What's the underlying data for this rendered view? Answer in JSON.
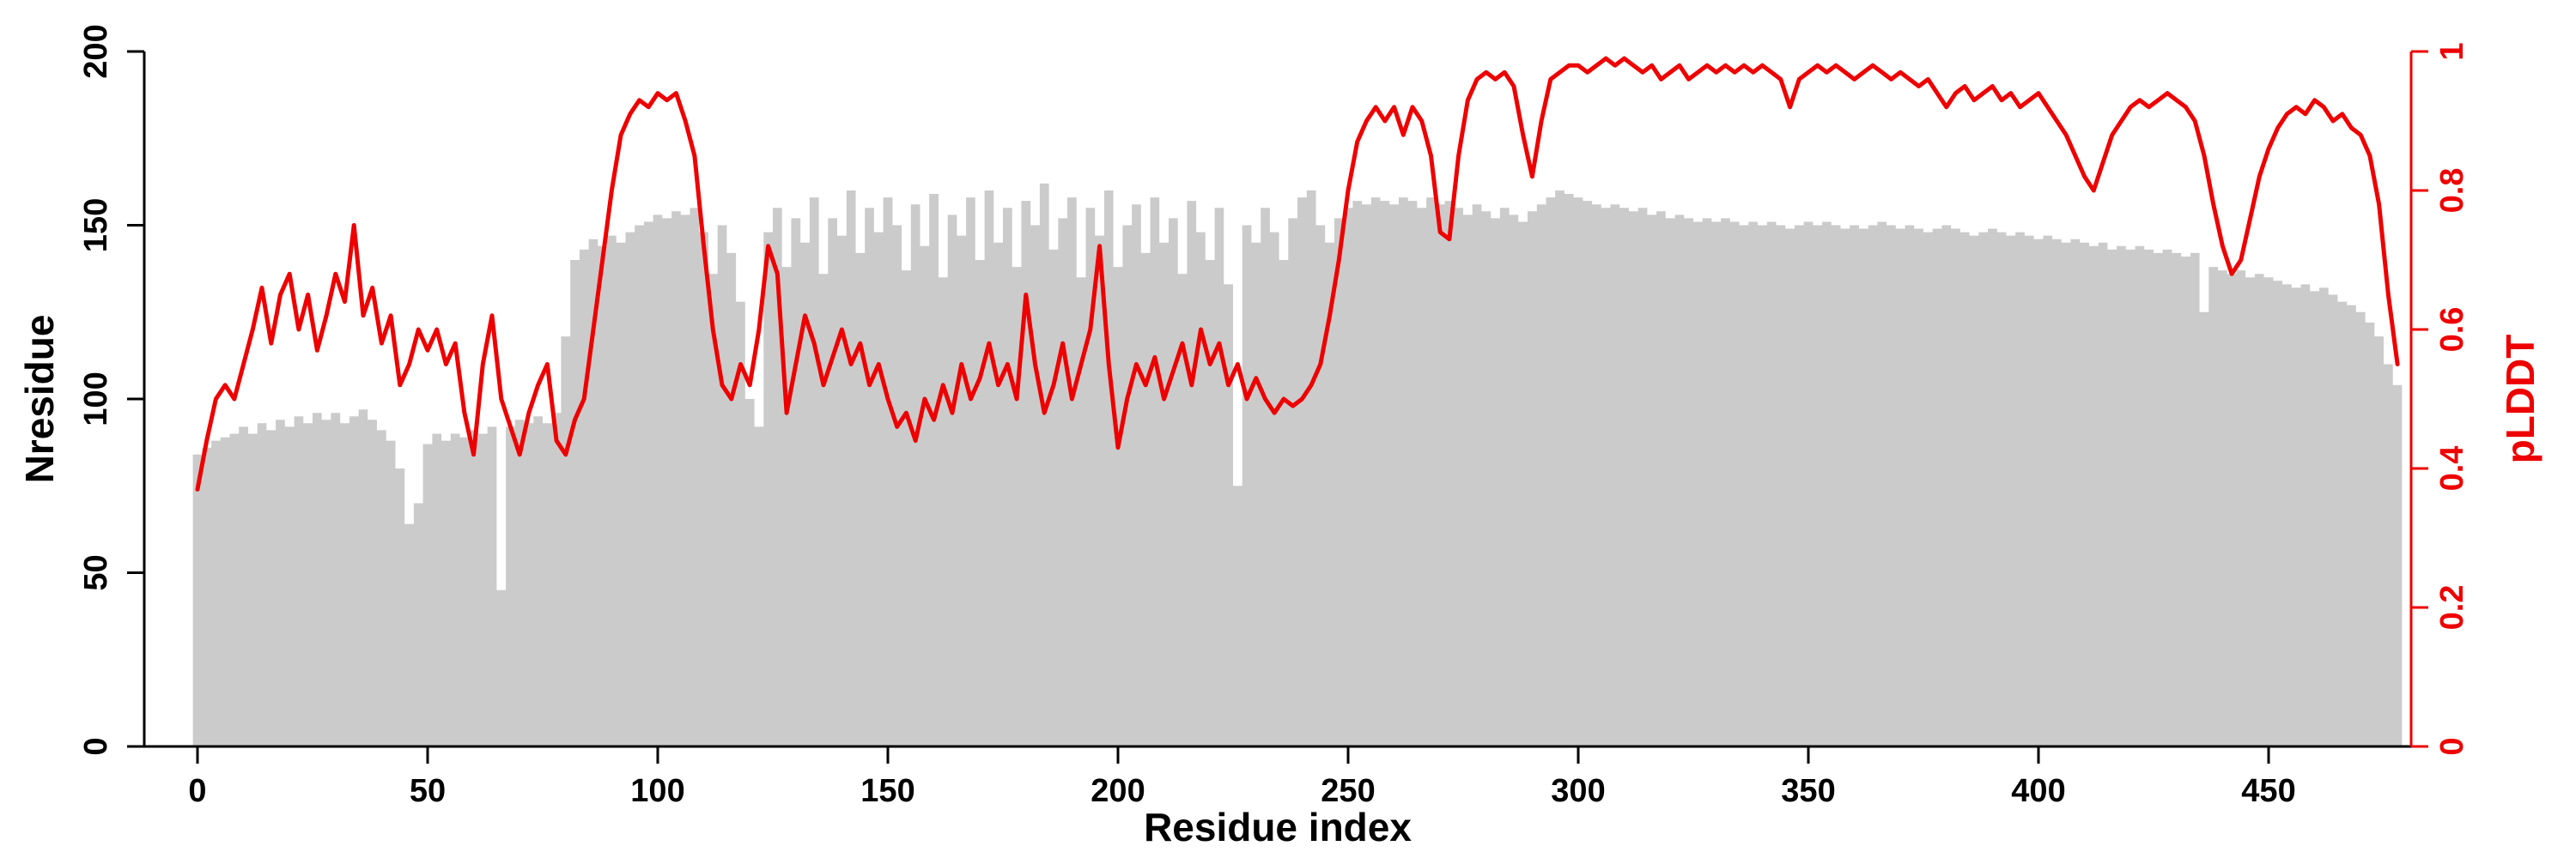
{
  "chart_data": {
    "type": "bar+line",
    "title": "",
    "xlabel": "Residue index",
    "ylabel_left": "Nresidue",
    "ylabel_right": "pLDDT",
    "xlim": [
      0,
      478
    ],
    "ylim_left": [
      0,
      200
    ],
    "ylim_right": [
      0,
      1
    ],
    "x_ticks": [
      0,
      50,
      100,
      150,
      200,
      250,
      300,
      350,
      400,
      450
    ],
    "y_left_ticks": [
      0,
      50,
      100,
      150,
      200
    ],
    "y_right_ticks": [
      "0",
      "0.2",
      "0.4",
      "0.6",
      "0.8",
      "1"
    ],
    "grid": false,
    "legend": "none",
    "bar_color": "#cbcbcb",
    "line_color": "#ee0000",
    "axis_color": "#000000",
    "x_step": 2,
    "series": [
      {
        "name": "Nresidue",
        "type": "bar",
        "axis": "left",
        "values": [
          84,
          86,
          88,
          89,
          90,
          92,
          90,
          93,
          91,
          94,
          92,
          95,
          93,
          96,
          94,
          96,
          93,
          95,
          97,
          94,
          91,
          88,
          80,
          64,
          70,
          87,
          90,
          88,
          90,
          89,
          91,
          90,
          92,
          45,
          92,
          94,
          93,
          95,
          93,
          96,
          118,
          140,
          143,
          146,
          144,
          147,
          145,
          148,
          150,
          151,
          153,
          152,
          154,
          153,
          155,
          148,
          136,
          150,
          142,
          128,
          100,
          92,
          148,
          155,
          138,
          152,
          145,
          158,
          136,
          152,
          147,
          160,
          142,
          155,
          148,
          158,
          150,
          137,
          156,
          144,
          159,
          135,
          153,
          147,
          158,
          140,
          160,
          145,
          155,
          138,
          157,
          150,
          162,
          143,
          152,
          158,
          135,
          155,
          147,
          160,
          138,
          150,
          156,
          142,
          158,
          145,
          152,
          136,
          157,
          148,
          140,
          155,
          133,
          75,
          150,
          145,
          155,
          148,
          140,
          152,
          158,
          160,
          150,
          145,
          152,
          155,
          157,
          156,
          158,
          157,
          156,
          158,
          157,
          155,
          158,
          156,
          157,
          155,
          153,
          156,
          154,
          152,
          155,
          153,
          151,
          154,
          156,
          158,
          160,
          159,
          158,
          157,
          156,
          155,
          156,
          155,
          154,
          155,
          153,
          154,
          152,
          153,
          152,
          151,
          152,
          151,
          152,
          151,
          150,
          151,
          150,
          151,
          150,
          149,
          150,
          151,
          150,
          151,
          150,
          149,
          150,
          149,
          150,
          151,
          150,
          149,
          150,
          149,
          148,
          149,
          150,
          149,
          148,
          147,
          148,
          149,
          148,
          147,
          148,
          147,
          146,
          147,
          146,
          145,
          146,
          145,
          144,
          145,
          143,
          144,
          143,
          144,
          143,
          142,
          143,
          142,
          141,
          142,
          125,
          138,
          137,
          136,
          137,
          135,
          136,
          135,
          134,
          133,
          132,
          133,
          131,
          132,
          130,
          128,
          127,
          125,
          122,
          118,
          110,
          104
        ]
      },
      {
        "name": "pLDDT",
        "type": "line",
        "axis": "right",
        "values": [
          0.37,
          0.44,
          0.5,
          0.52,
          0.5,
          0.55,
          0.6,
          0.66,
          0.58,
          0.65,
          0.68,
          0.6,
          0.65,
          0.57,
          0.62,
          0.68,
          0.64,
          0.75,
          0.62,
          0.66,
          0.58,
          0.62,
          0.52,
          0.55,
          0.6,
          0.57,
          0.6,
          0.55,
          0.58,
          0.48,
          0.42,
          0.55,
          0.62,
          0.5,
          0.46,
          0.42,
          0.48,
          0.52,
          0.55,
          0.44,
          0.42,
          0.47,
          0.5,
          0.6,
          0.7,
          0.8,
          0.88,
          0.91,
          0.93,
          0.92,
          0.94,
          0.93,
          0.94,
          0.9,
          0.85,
          0.72,
          0.6,
          0.52,
          0.5,
          0.55,
          0.52,
          0.6,
          0.72,
          0.68,
          0.48,
          0.55,
          0.62,
          0.58,
          0.52,
          0.56,
          0.6,
          0.55,
          0.58,
          0.52,
          0.55,
          0.5,
          0.46,
          0.48,
          0.44,
          0.5,
          0.47,
          0.52,
          0.48,
          0.55,
          0.5,
          0.53,
          0.58,
          0.52,
          0.55,
          0.5,
          0.65,
          0.55,
          0.48,
          0.52,
          0.58,
          0.5,
          0.55,
          0.6,
          0.72,
          0.55,
          0.43,
          0.5,
          0.55,
          0.52,
          0.56,
          0.5,
          0.54,
          0.58,
          0.52,
          0.6,
          0.55,
          0.58,
          0.52,
          0.55,
          0.5,
          0.53,
          0.5,
          0.48,
          0.5,
          0.49,
          0.5,
          0.52,
          0.55,
          0.62,
          0.7,
          0.8,
          0.87,
          0.9,
          0.92,
          0.9,
          0.92,
          0.88,
          0.92,
          0.9,
          0.85,
          0.74,
          0.73,
          0.85,
          0.93,
          0.96,
          0.97,
          0.96,
          0.97,
          0.95,
          0.88,
          0.82,
          0.9,
          0.96,
          0.97,
          0.98,
          0.98,
          0.97,
          0.98,
          0.99,
          0.98,
          0.99,
          0.98,
          0.97,
          0.98,
          0.96,
          0.97,
          0.98,
          0.96,
          0.97,
          0.98,
          0.97,
          0.98,
          0.97,
          0.98,
          0.97,
          0.98,
          0.97,
          0.96,
          0.92,
          0.96,
          0.97,
          0.98,
          0.97,
          0.98,
          0.97,
          0.96,
          0.97,
          0.98,
          0.97,
          0.96,
          0.97,
          0.96,
          0.95,
          0.96,
          0.94,
          0.92,
          0.94,
          0.95,
          0.93,
          0.94,
          0.95,
          0.93,
          0.94,
          0.92,
          0.93,
          0.94,
          0.92,
          0.9,
          0.88,
          0.85,
          0.82,
          0.8,
          0.84,
          0.88,
          0.9,
          0.92,
          0.93,
          0.92,
          0.93,
          0.94,
          0.93,
          0.92,
          0.9,
          0.85,
          0.78,
          0.72,
          0.68,
          0.7,
          0.76,
          0.82,
          0.86,
          0.89,
          0.91,
          0.92,
          0.91,
          0.93,
          0.92,
          0.9,
          0.91,
          0.89,
          0.88,
          0.85,
          0.78,
          0.65,
          0.55
        ]
      }
    ]
  }
}
